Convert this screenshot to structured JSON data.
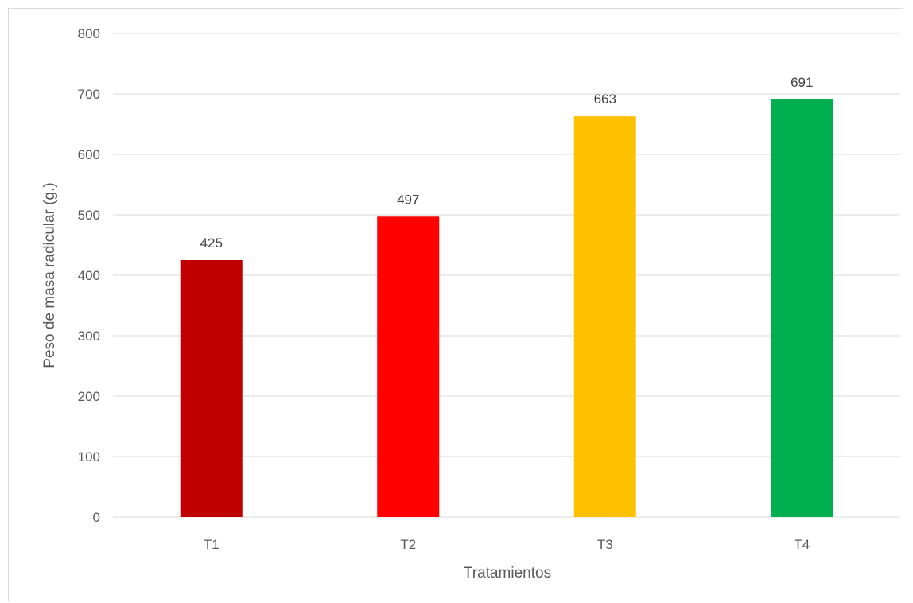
{
  "chart_data": {
    "type": "bar",
    "categories": [
      "T1",
      "T2",
      "T3",
      "T4"
    ],
    "values": [
      425,
      497,
      663,
      691
    ],
    "data_labels": [
      "425",
      "497",
      "663",
      "691"
    ],
    "colors": [
      "#C00000",
      "#FF0000",
      "#FFC000",
      "#00B050"
    ],
    "title": "",
    "xlabel": "Tratamientos",
    "ylabel": "Peso de masa radicular (g.)",
    "ylim": [
      0,
      800
    ],
    "yticks": [
      0,
      100,
      200,
      300,
      400,
      500,
      600,
      700,
      800
    ],
    "ytick_labels": [
      "0",
      "100",
      "200",
      "300",
      "400",
      "500",
      "600",
      "700",
      "800"
    ],
    "grid": true,
    "gridline_color": "#d9d9d9",
    "legend": "none"
  }
}
